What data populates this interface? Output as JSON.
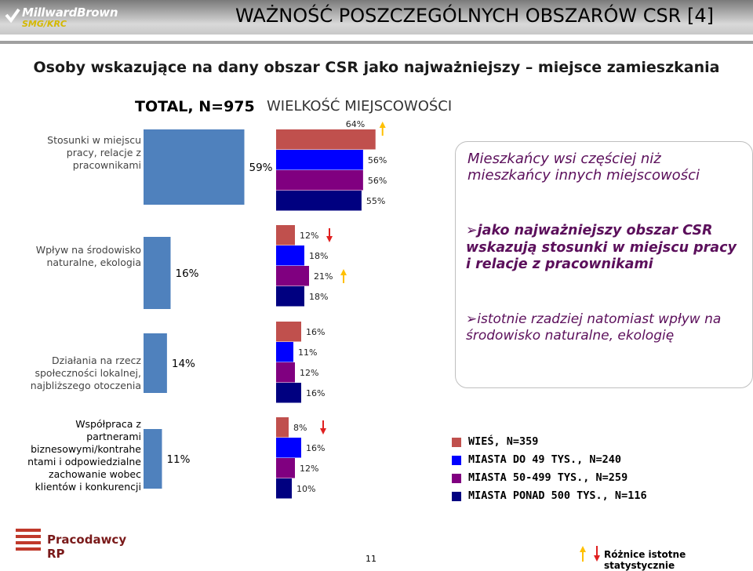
{
  "header": {
    "brand": "MillwardBrown",
    "brand_sub": "SMG/KRC",
    "title": "WAŻNOŚĆ POSZCZEGÓLNYCH OBSZARÓW CSR [4]"
  },
  "subtitle": "Osoby wskazujące na dany obszar CSR jako najważniejszy – miejsce zamieszkania",
  "column_headers": {
    "total": "TOTAL, N=975",
    "size": "WIELKOŚĆ MIEJSCOWOŚCI"
  },
  "chart_data": {
    "type": "bar",
    "orientation": "horizontal",
    "categories": [
      "Stosunki w miejscu pracy, relacje z pracownikami",
      "Wpływ na środowisko naturalne, ekologia",
      "Działania na rzecz społeczności lokalnej, najbliższego otoczenia",
      "Współpraca z partnerami biznesowymi/kontrahentami i odpowiedzialne zachowanie wobec klientów i konkurencji"
    ],
    "total": {
      "name": "TOTAL, N=975",
      "values": [
        59,
        16,
        14,
        11
      ],
      "labels": [
        "59%",
        "16%",
        "14%",
        "11%"
      ],
      "color": "#4f81bd"
    },
    "series": [
      {
        "name": "WIEŚ, N=359",
        "color": "#c0504d",
        "values": [
          64,
          12,
          16,
          8
        ],
        "labels": [
          "64%",
          "12%",
          "16%",
          "8%"
        ]
      },
      {
        "name": "MIASTA DO 49 TYS., N=240",
        "color": "#0000ff",
        "values": [
          56,
          18,
          11,
          16
        ],
        "labels": [
          "56%",
          "18%",
          "11%",
          "16%"
        ]
      },
      {
        "name": "MIASTA 50-499 TYS., N=259",
        "color": "#800080",
        "values": [
          56,
          21,
          12,
          12
        ],
        "labels": [
          "56%",
          "21%",
          "12%",
          "12%"
        ]
      },
      {
        "name": "MIASTA PONAD 500 TYS., N=116",
        "color": "#000080",
        "values": [
          55,
          18,
          16,
          10
        ],
        "labels": [
          "55%",
          "18%",
          "16%",
          "10%"
        ]
      }
    ],
    "significance_markers": [
      {
        "category": 0,
        "series": 0,
        "direction": "up"
      },
      {
        "category": 1,
        "series": 0,
        "direction": "down"
      },
      {
        "category": 1,
        "series": 2,
        "direction": "up"
      },
      {
        "category": 3,
        "series": 0,
        "direction": "down"
      }
    ],
    "legend_position": "bottom-right"
  },
  "category_labels": [
    [
      "Stosunki w miejscu",
      "pracy, relacje z",
      "pracownikami"
    ],
    [
      "Wpływ na środowisko",
      "naturalne, ekologia"
    ],
    [
      "Działania na rzecz",
      "społeczności lokalnej,",
      "najbliższego otoczenia"
    ],
    [
      "Współpraca z",
      "partnerami",
      "biznesowymi/kontrahe",
      "ntami i odpowiedzialne",
      "zachowanie wobec",
      "klientów i konkurencji"
    ]
  ],
  "notes": {
    "note1": "Mieszkańcy wsi częściej niż mieszkańcy innych miejscowości",
    "note2": "jako najważniejszy obszar CSR wskazują stosunki w miejscu pracy i relacje z pracownikami",
    "note3": "istotnie rzadziej natomiast wpływ na środowisko naturalne, ekologię"
  },
  "footer": {
    "logo": "Pracodawcy RP",
    "page_number": "11",
    "significance_note": "Różnice istotne statystycznie"
  },
  "colors": {
    "up_arrow": "#ffc000",
    "down_arrow": "#e02020"
  }
}
